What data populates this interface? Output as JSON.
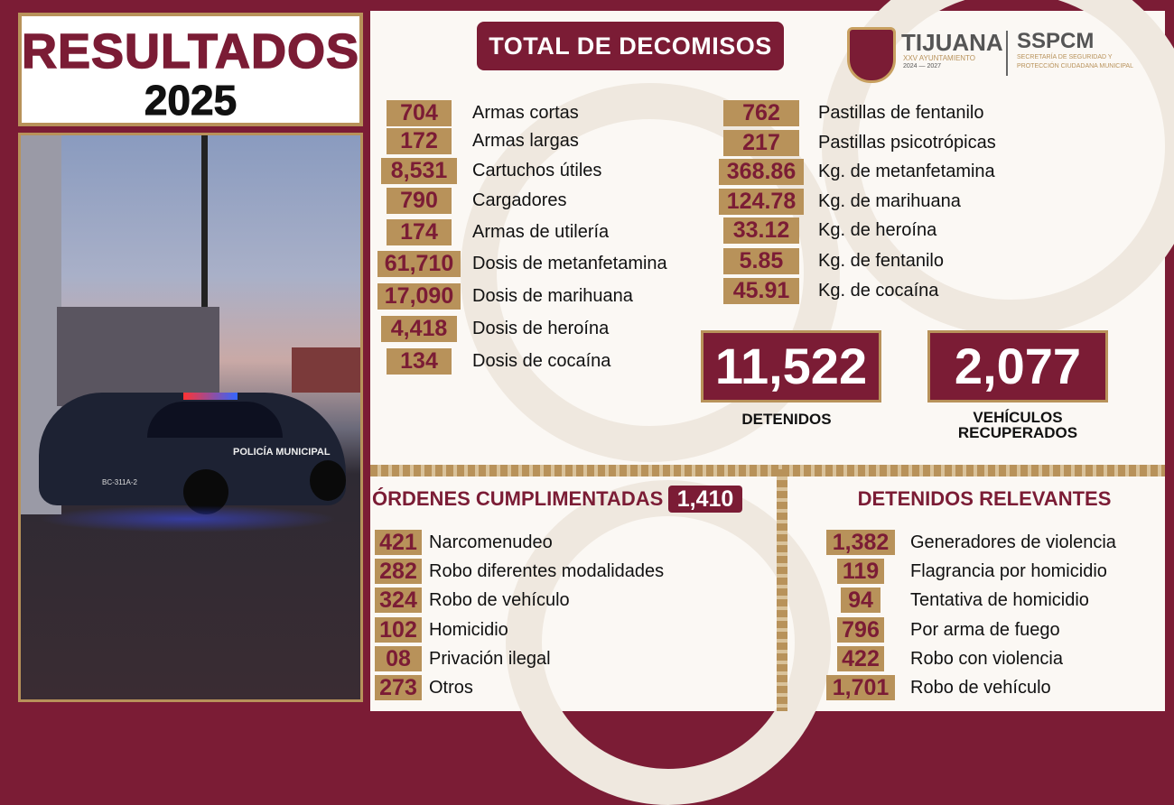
{
  "title": {
    "line1": "RESULTADOS",
    "line2": "2025"
  },
  "header": {
    "label": "TOTAL DE DECOMISOS"
  },
  "logo": {
    "city": "TIJUANA",
    "subtitle": "XXV AYUNTAMIENTO",
    "years": "2024 — 2027",
    "agency": "SSPCM",
    "agency_full_1": "SECRETARÍA DE SEGURIDAD Y",
    "agency_full_2": "PROTECCIÓN CIUDADANA MUNICIPAL"
  },
  "photo": {
    "car_text": "POLICÍA MUNICIPAL",
    "plate": "BC-311A-2"
  },
  "seizures_left": [
    {
      "value": "704",
      "label": "Armas cortas"
    },
    {
      "value": "172",
      "label": "Armas largas"
    },
    {
      "value": "8,531",
      "label": "Cartuchos útiles"
    },
    {
      "value": "790",
      "label": "Cargadores"
    },
    {
      "value": "174",
      "label": "Armas de utilería"
    },
    {
      "value": "61,710",
      "label": "Dosis de metanfetamina"
    },
    {
      "value": "17,090",
      "label": "Dosis de marihuana"
    },
    {
      "value": "4,418",
      "label": "Dosis de heroína"
    },
    {
      "value": "134",
      "label": "Dosis de cocaína"
    }
  ],
  "seizures_right": [
    {
      "value": "762",
      "label": "Pastillas de fentanilo"
    },
    {
      "value": "217",
      "label": "Pastillas psicotrópicas"
    },
    {
      "value": "368.86",
      "label": "Kg. de metanfetamina"
    },
    {
      "value": "124.78",
      "label": "Kg. de marihuana"
    },
    {
      "value": "33.12",
      "label": "Kg. de heroína"
    },
    {
      "value": "5.85",
      "label": "Kg. de fentanilo"
    },
    {
      "value": "45.91",
      "label": "Kg. de cocaína"
    }
  ],
  "totals": {
    "detained_value": "11,522",
    "detained_label": "DETENIDOS",
    "vehicles_value": "2,077",
    "vehicles_label_1": "VEHÍCULOS",
    "vehicles_label_2": "RECUPERADOS"
  },
  "orders": {
    "title": "ÓRDENES CUMPLIMENTADAS",
    "total": "1,410",
    "items": [
      {
        "value": "421",
        "label": "Narcomenudeo"
      },
      {
        "value": "282",
        "label": "Robo diferentes modalidades"
      },
      {
        "value": "324",
        "label": "Robo de vehículo"
      },
      {
        "value": "102",
        "label": "Homicidio"
      },
      {
        "value": "08",
        "label": "Privación ilegal"
      },
      {
        "value": "273",
        "label": "Otros"
      }
    ]
  },
  "relevant": {
    "title": "DETENIDOS RELEVANTES",
    "items": [
      {
        "value": "1,382",
        "label": "Generadores de violencia"
      },
      {
        "value": "119",
        "label": "Flagrancia por homicidio"
      },
      {
        "value": "94",
        "label": "Tentativa de homicidio"
      },
      {
        "value": "796",
        "label": "Por arma de fuego"
      },
      {
        "value": "422",
        "label": "Robo con violencia"
      },
      {
        "value": "1,701",
        "label": "Robo de vehículo"
      }
    ]
  },
  "colors": {
    "maroon": "#7b1c35",
    "gold": "#b8925a"
  }
}
